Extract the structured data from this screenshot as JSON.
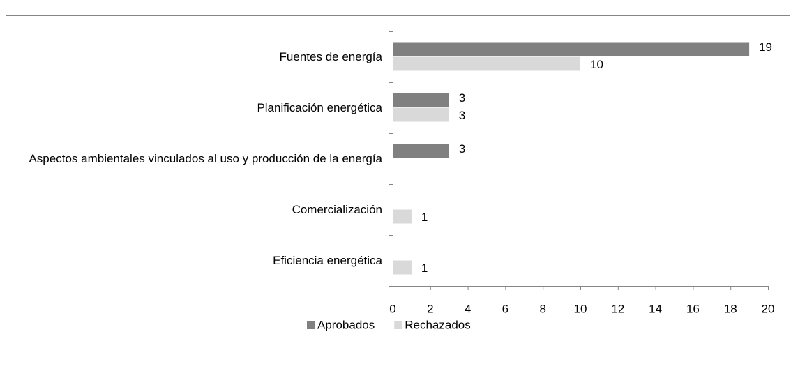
{
  "chart_data": {
    "type": "bar",
    "orientation": "horizontal",
    "categories": [
      "Fuentes de energía",
      "Planificación energética",
      "Aspectos ambientales vinculados al uso y producción de la energía",
      "Comercialización",
      "Eficiencia energética"
    ],
    "series": [
      {
        "name": "Aprobados",
        "color": "#808080",
        "values": [
          19,
          3,
          3,
          null,
          null
        ]
      },
      {
        "name": "Rechazados",
        "color": "#d9d9d9",
        "values": [
          10,
          3,
          null,
          1,
          1
        ]
      }
    ],
    "xlim": [
      0,
      20
    ],
    "xticks": [
      0,
      2,
      4,
      6,
      8,
      10,
      12,
      14,
      16,
      18,
      20
    ],
    "legend": "bottom"
  }
}
